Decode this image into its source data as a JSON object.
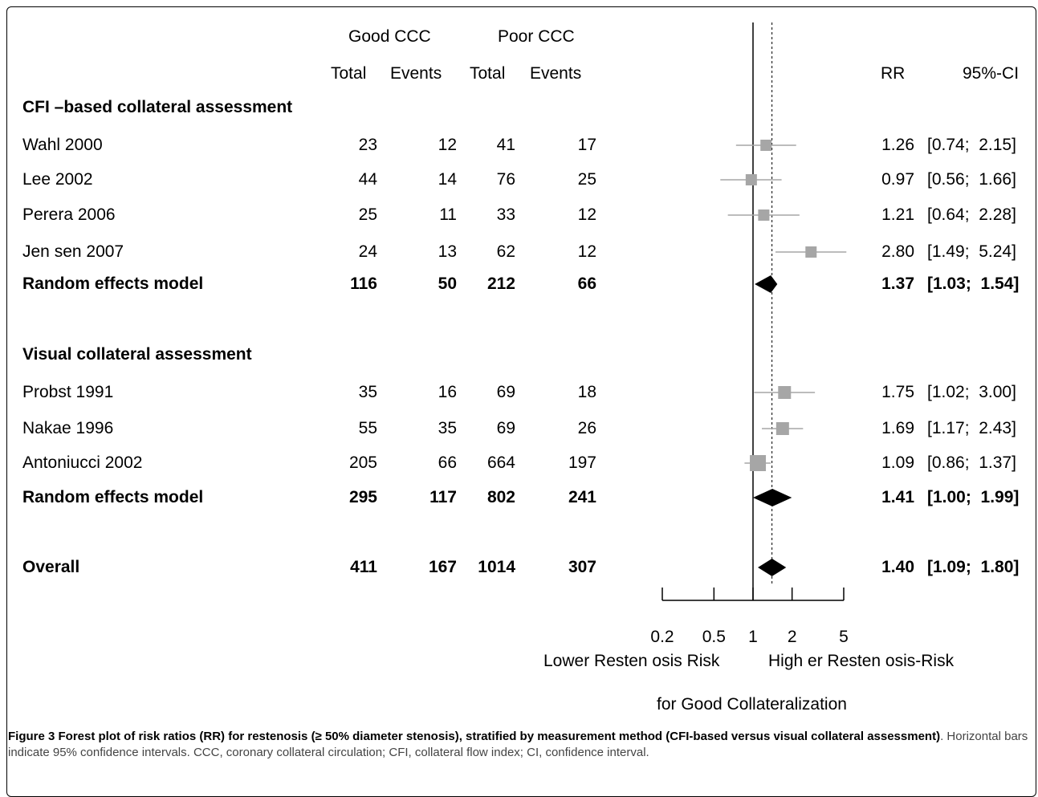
{
  "header": {
    "good_ccc": "Good CCC",
    "poor_ccc": "Poor CCC",
    "total": "Total",
    "events": "Events",
    "rr": "RR",
    "ci": "95%-CI"
  },
  "rows": [
    {
      "kind": "section",
      "label": "CFI –based collateral assessment"
    },
    {
      "kind": "study",
      "label": "Wahl 2000",
      "good_total": "23",
      "good_events": "12",
      "poor_total": "41",
      "poor_events": "17",
      "rr_text": "1.26",
      "ci_text": "[0.74;  2.15]"
    },
    {
      "kind": "study",
      "label": "Lee 2002",
      "good_total": "44",
      "good_events": "14",
      "poor_total": "76",
      "poor_events": "25",
      "rr_text": "0.97",
      "ci_text": "[0.56;  1.66]"
    },
    {
      "kind": "study",
      "label": "Perera 2006",
      "good_total": "25",
      "good_events": "11",
      "poor_total": "33",
      "poor_events": "12",
      "rr_text": "1.21",
      "ci_text": "[0.64;  2.28]"
    },
    {
      "kind": "study",
      "label": "Jen sen 2007",
      "good_total": "24",
      "good_events": "13",
      "poor_total": "62",
      "poor_events": "12",
      "rr_text": "2.80",
      "ci_text": "[1.49;  5.24]"
    },
    {
      "kind": "summary",
      "label": "Random effects model",
      "good_total": "116",
      "good_events": "50",
      "poor_total": "212",
      "poor_events": "66",
      "rr_text": "1.37",
      "ci_text": "[1.03;  1.54]"
    },
    {
      "kind": "section",
      "label": "Visual collateral  assessment"
    },
    {
      "kind": "study",
      "label": "Probst 1991",
      "good_total": "35",
      "good_events": "16",
      "poor_total": "69",
      "poor_events": "18",
      "rr_text": "1.75",
      "ci_text": "[1.02;  3.00]"
    },
    {
      "kind": "study",
      "label": "Nakae 1996",
      "good_total": "55",
      "good_events": "35",
      "poor_total": "69",
      "poor_events": "26",
      "rr_text": "1.69",
      "ci_text": "[1.17;  2.43]"
    },
    {
      "kind": "study",
      "label": "Antoniucci 2002",
      "good_total": "205",
      "good_events": "66",
      "poor_total": "664",
      "poor_events": "197",
      "rr_text": "1.09",
      "ci_text": "[0.86;  1.37]"
    },
    {
      "kind": "summary",
      "label": "Random effects model",
      "good_total": "295",
      "good_events": "117",
      "poor_total": "802",
      "poor_events": "241",
      "rr_text": "1.41",
      "ci_text": "[1.00;  1.99]"
    },
    {
      "kind": "summary",
      "label": "Overall",
      "good_total": "411",
      "good_events": "167",
      "poor_total": "1014",
      "poor_events": "307",
      "rr_text": "1.40",
      "ci_text": "[1.09;  1.80]"
    }
  ],
  "chart_data": {
    "type": "forest",
    "x_scale": "log",
    "xlim": [
      0.2,
      5
    ],
    "x_ticks": [
      0.2,
      0.5,
      1,
      2,
      5
    ],
    "x_tick_labels": [
      "0.2",
      "0.5",
      "1",
      "2",
      "5"
    ],
    "reference_line": 1,
    "overall_line": 1.4,
    "xlabel_left": "Lower Resten osis Risk",
    "xlabel_right": "High er Resten osis-Risk",
    "xlabel_bottom": "for Good Collateralization",
    "studies": [
      {
        "name": "Wahl 2000",
        "rr": 1.26,
        "lo": 0.74,
        "hi": 2.15
      },
      {
        "name": "Lee 2002",
        "rr": 0.97,
        "lo": 0.56,
        "hi": 1.66
      },
      {
        "name": "Perera 2006",
        "rr": 1.21,
        "lo": 0.64,
        "hi": 2.28
      },
      {
        "name": "Jensen 2007",
        "rr": 2.8,
        "lo": 1.49,
        "hi": 5.24
      },
      {
        "name": "Probst 1991",
        "rr": 1.75,
        "lo": 1.02,
        "hi": 3.0
      },
      {
        "name": "Nakae 1996",
        "rr": 1.69,
        "lo": 1.17,
        "hi": 2.43
      },
      {
        "name": "Antoniucci 2002",
        "rr": 1.09,
        "lo": 0.86,
        "hi": 1.37
      }
    ],
    "summaries": [
      {
        "name": "Random effects model (CFI)",
        "rr": 1.37,
        "lo": 1.03,
        "hi": 1.54
      },
      {
        "name": "Random effects model (Visual)",
        "rr": 1.41,
        "lo": 1.0,
        "hi": 1.99
      },
      {
        "name": "Overall",
        "rr": 1.4,
        "lo": 1.09,
        "hi": 1.8
      }
    ],
    "colors": {
      "square": "#a6a6a6",
      "ci_line": "#a6a6a6",
      "diamond": "#000000"
    }
  },
  "caption": {
    "head": "Figure 3 Forest plot of risk ratios (RR) for restenosis (≥ 50% diameter stenosis), stratified by measurement method (CFI-based versus visual collateral assessment)",
    "body": ". Horizontal bars indicate 95% confidence intervals. CCC, coronary collateral circulation; CFI, collateral flow index; CI, confidence interval."
  }
}
